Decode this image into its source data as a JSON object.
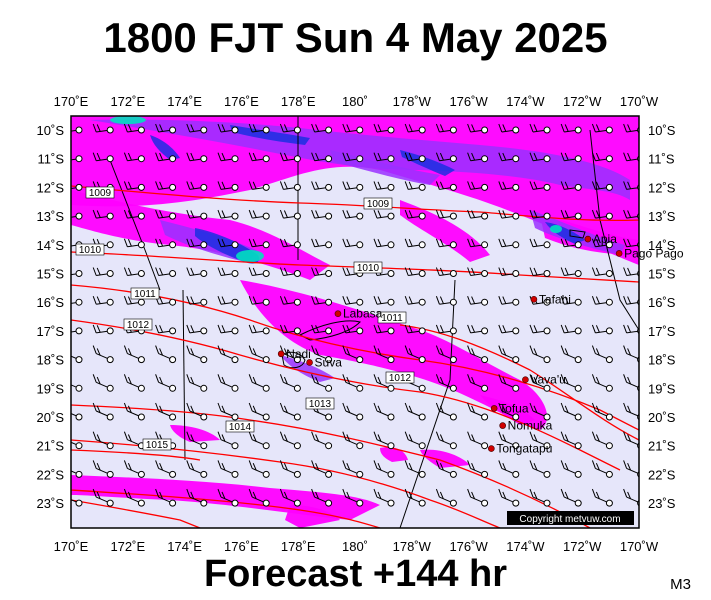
{
  "title": "1800 FJT Sun 4 May 2025",
  "footer": "Forecast +144 hr",
  "corner_label": "M3",
  "copyright": "Copyright metvuw.com",
  "map": {
    "lon_labels": [
      "170˚E",
      "172˚E",
      "174˚E",
      "176˚E",
      "178˚E",
      "180˚",
      "178˚W",
      "176˚W",
      "174˚W",
      "172˚W",
      "170˚W"
    ],
    "lat_labels": [
      "10˚S",
      "11˚S",
      "12˚S",
      "13˚S",
      "14˚S",
      "15˚S",
      "16˚S",
      "17˚S",
      "18˚S",
      "19˚S",
      "20˚S",
      "21˚S",
      "22˚S",
      "23˚S"
    ],
    "isobar_labels": [
      {
        "text": "1009",
        "series": 0
      },
      {
        "text": "1009",
        "series": 1
      },
      {
        "text": "1010",
        "series": 2
      },
      {
        "text": "1010",
        "series": 3
      },
      {
        "text": "1011",
        "series": 4
      },
      {
        "text": "1011",
        "series": 5
      },
      {
        "text": "1012",
        "series": 6
      },
      {
        "text": "1012",
        "series": 7
      },
      {
        "text": "1013",
        "series": 8
      },
      {
        "text": "1014",
        "series": 9
      },
      {
        "text": "1015",
        "series": 10
      }
    ],
    "places": [
      {
        "name": "Apia",
        "lon": -171.8,
        "lat": -13.8
      },
      {
        "name": "Pago Pago",
        "lon": -170.7,
        "lat": -14.3
      },
      {
        "name": "Tafahi",
        "lon": -173.7,
        "lat": -15.9
      },
      {
        "name": "Labasa",
        "lon": 179.4,
        "lat": -16.4
      },
      {
        "name": "Nadi",
        "lon": 177.4,
        "lat": -17.8
      },
      {
        "name": "Suva",
        "lon": 178.4,
        "lat": -18.1
      },
      {
        "name": "Vava'u",
        "lon": -174.0,
        "lat": -18.7
      },
      {
        "name": "Tofua",
        "lon": -175.1,
        "lat": -19.7
      },
      {
        "name": "Nomuka",
        "lon": -174.8,
        "lat": -20.3
      },
      {
        "name": "Tongatapu",
        "lon": -175.2,
        "lat": -21.1
      }
    ],
    "colors": {
      "background": "#e6e6fa",
      "precip_light": "#ff00ff",
      "precip_mid": "#9a30ff",
      "precip_heavy": "#1030e0",
      "precip_max": "#00e0c0",
      "isobar": "#ff0000"
    }
  }
}
